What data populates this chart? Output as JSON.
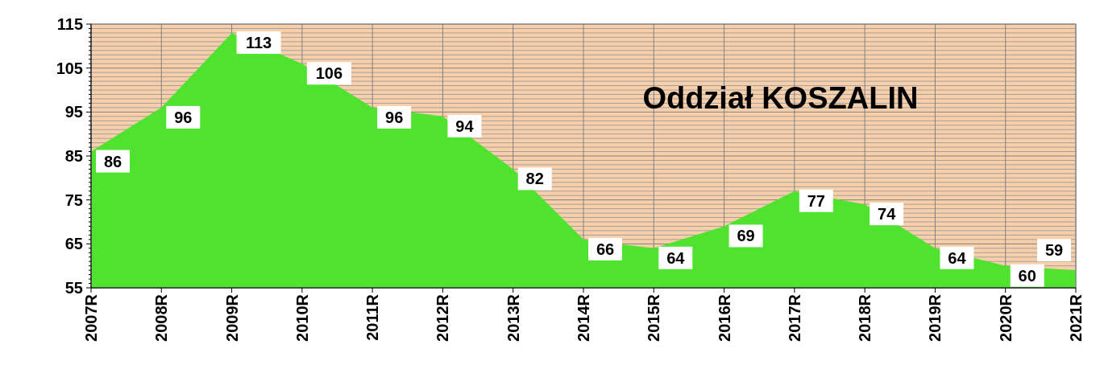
{
  "chart_data": {
    "type": "area",
    "title": "Oddział KOSZALIN",
    "categories": [
      "2007R",
      "2008R",
      "2009R",
      "2010R",
      "2011R",
      "2012R",
      "2013R",
      "2014R",
      "2015R",
      "2016R",
      "2017R",
      "2018R",
      "2019R",
      "2020R",
      "2021R"
    ],
    "values": [
      86,
      96,
      113,
      106,
      96,
      94,
      82,
      66,
      64,
      69,
      77,
      74,
      64,
      60,
      59
    ],
    "color": "#4fe22f",
    "ylim": [
      55,
      115
    ],
    "yticks": [
      55,
      {
        "value": 56,
        "label": null
      },
      {
        "value": 57,
        "label": null
      },
      {
        "value": 58,
        "label": null
      },
      {
        "value": 59,
        "label": null
      },
      {
        "value": 60,
        "label": null
      },
      {
        "value": 61,
        "label": null
      },
      {
        "value": 62,
        "label": null
      },
      {
        "value": 63,
        "label": null
      },
      {
        "value": 64,
        "label": null
      },
      65,
      {
        "value": 66,
        "label": null
      },
      {
        "value": 67,
        "label": null
      },
      {
        "value": 68,
        "label": null
      },
      {
        "value": 69,
        "label": null
      },
      {
        "value": 70,
        "label": null
      },
      {
        "value": 71,
        "label": null
      },
      {
        "value": 72,
        "label": null
      },
      {
        "value": 73,
        "label": null
      },
      {
        "value": 74,
        "label": null
      },
      75,
      {
        "value": 76,
        "label": null
      },
      {
        "value": 77,
        "label": null
      },
      {
        "value": 78,
        "label": null
      },
      {
        "value": 79,
        "label": null
      },
      {
        "value": 80,
        "label": null
      },
      {
        "value": 81,
        "label": null
      },
      {
        "value": 82,
        "label": null
      },
      {
        "value": 83,
        "label": null
      },
      {
        "value": 84,
        "label": null
      },
      85,
      {
        "value": 86,
        "label": null
      },
      {
        "value": 87,
        "label": null
      },
      {
        "value": 88,
        "label": null
      },
      {
        "value": 89,
        "label": null
      },
      {
        "value": 90,
        "label": null
      },
      {
        "value": 91,
        "label": null
      },
      {
        "value": 92,
        "label": null
      },
      {
        "value": 93,
        "label": null
      },
      {
        "value": 94,
        "label": null
      },
      95,
      {
        "value": 96,
        "label": null
      },
      {
        "value": 97,
        "label": null
      },
      {
        "value": 98,
        "label": null
      },
      {
        "value": 99,
        "label": null
      },
      {
        "value": 100,
        "label": null
      },
      {
        "value": 101,
        "label": null
      },
      {
        "value": 102,
        "label": null
      },
      {
        "value": 103,
        "label": null
      },
      {
        "value": 104,
        "label": null
      },
      105,
      {
        "value": 106,
        "label": null
      },
      {
        "value": 107,
        "label": null
      },
      {
        "value": 108,
        "label": null
      },
      {
        "value": 109,
        "label": null
      },
      {
        "value": 110,
        "label": null
      },
      {
        "value": 111,
        "label": null
      },
      {
        "value": 112,
        "label": null
      },
      {
        "value": 113,
        "label": null
      },
      {
        "value": 114,
        "label": null
      },
      115
    ],
    "grid": true,
    "data_labels": true
  }
}
